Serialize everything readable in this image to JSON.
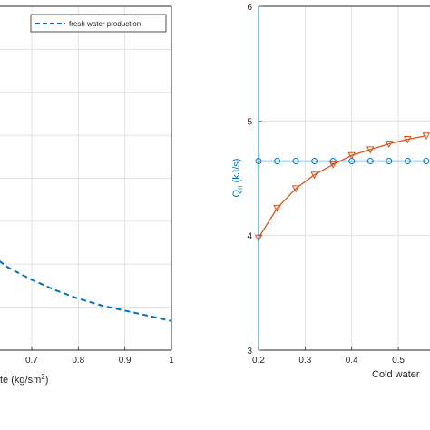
{
  "chart_data": [
    {
      "type": "line",
      "title": "",
      "xlabel": "te (kg/sm",
      "xlabel_sup": "2",
      "xlabel_tail": ")",
      "ylabel": "",
      "xlim": [
        0.63,
        1.0
      ],
      "ylim": [
        0.0,
        1.0
      ],
      "x_ticks": [
        "0.7",
        "0.8",
        "0.9",
        "1"
      ],
      "x_tick_values": [
        0.7,
        0.8,
        0.9,
        1.0
      ],
      "y_ticks": [],
      "grid": true,
      "legend": {
        "placement": "top-right",
        "entries": [
          "fresh water production"
        ]
      },
      "series": [
        {
          "name": "fresh water production",
          "color": "#0072BD",
          "line_style": "dashed",
          "x": [
            0.63,
            0.65,
            0.7,
            0.75,
            0.8,
            0.85,
            0.9,
            0.95,
            1.0
          ],
          "y": [
            0.26,
            0.24,
            0.205,
            0.175,
            0.15,
            0.13,
            0.115,
            0.1,
            0.085
          ]
        }
      ]
    },
    {
      "type": "line",
      "title": "",
      "xlabel": "Cold water",
      "ylabel": "Q",
      "ylabel_sub": "n",
      "ylabel_tail": " (kJ/s)",
      "ylabel_color": "#0072BD",
      "xlim": [
        0.2,
        0.57
      ],
      "ylim": [
        3,
        6
      ],
      "x_ticks": [
        "0.2",
        "0.3",
        "0.4",
        "0.5"
      ],
      "x_tick_values": [
        0.2,
        0.3,
        0.4,
        0.5
      ],
      "y_ticks": [
        "3",
        "4",
        "5",
        "6"
      ],
      "y_tick_values": [
        3,
        4,
        5,
        6
      ],
      "y_axis_color": "#0072BD",
      "grid": true,
      "series": [
        {
          "color": "#0072BD",
          "marker": "circle",
          "x": [
            0.2,
            0.24,
            0.28,
            0.32,
            0.36,
            0.4,
            0.44,
            0.48,
            0.52,
            0.56
          ],
          "y": [
            4.65,
            4.65,
            4.65,
            4.65,
            4.65,
            4.65,
            4.65,
            4.65,
            4.65,
            4.65
          ]
        },
        {
          "color": "#D95319",
          "marker": "triangle-down",
          "x": [
            0.2,
            0.24,
            0.28,
            0.32,
            0.36,
            0.4,
            0.44,
            0.48,
            0.52,
            0.56
          ],
          "y": [
            3.98,
            4.24,
            4.41,
            4.53,
            4.62,
            4.7,
            4.75,
            4.8,
            4.84,
            4.87
          ]
        }
      ]
    }
  ]
}
